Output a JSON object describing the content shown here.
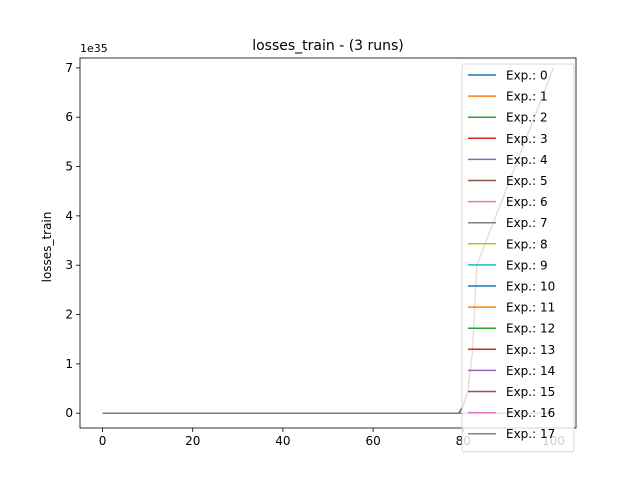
{
  "chart_data": {
    "type": "line",
    "title": "losses_train - (3 runs)",
    "xlabel": "",
    "ylabel": "losses_train",
    "y_offset_label": "1e35",
    "xlim": [
      -5,
      105
    ],
    "ylim": [
      -0.3,
      7.2
    ],
    "x_ticks": [
      0,
      20,
      40,
      60,
      80,
      100
    ],
    "y_ticks": [
      0,
      1,
      2,
      3,
      4,
      5,
      6,
      7
    ],
    "y_unit_note": "values in units of 1e35",
    "grid": false,
    "legend_position": "top-right",
    "series": [
      {
        "name": "Exp.: 0",
        "color": "#1f77b4",
        "x": [
          0,
          100
        ],
        "y": [
          0,
          0
        ]
      },
      {
        "name": "Exp.: 1",
        "color": "#ff7f0e",
        "x": [
          0,
          100
        ],
        "y": [
          0,
          0
        ]
      },
      {
        "name": "Exp.: 2",
        "color": "#2ca02c",
        "x": [
          0,
          100
        ],
        "y": [
          0,
          0
        ]
      },
      {
        "name": "Exp.: 3",
        "color": "#d62728",
        "x": [
          0,
          100
        ],
        "y": [
          0,
          0
        ]
      },
      {
        "name": "Exp.: 4",
        "color": "#9467bd",
        "x": [
          0,
          100
        ],
        "y": [
          0,
          0
        ]
      },
      {
        "name": "Exp.: 5",
        "color": "#8c564b",
        "x": [
          0,
          79,
          80,
          81,
          82,
          83,
          100
        ],
        "y": [
          0,
          0,
          0.15,
          0.45,
          1.2,
          3.0,
          7.0
        ]
      },
      {
        "name": "Exp.: 6",
        "color": "#e377c2",
        "x": [
          0,
          100
        ],
        "y": [
          0,
          0
        ]
      },
      {
        "name": "Exp.: 7",
        "color": "#7f7f7f",
        "x": [
          0,
          100
        ],
        "y": [
          0,
          0
        ]
      },
      {
        "name": "Exp.: 8",
        "color": "#bcbd22",
        "x": [
          0,
          100
        ],
        "y": [
          0,
          0
        ]
      },
      {
        "name": "Exp.: 9",
        "color": "#17becf",
        "x": [
          0,
          100
        ],
        "y": [
          0,
          0
        ]
      },
      {
        "name": "Exp.: 10",
        "color": "#1f77b4",
        "x": [
          0,
          100
        ],
        "y": [
          0,
          0
        ]
      },
      {
        "name": "Exp.: 11",
        "color": "#ff7f0e",
        "x": [
          0,
          100
        ],
        "y": [
          0,
          0
        ]
      },
      {
        "name": "Exp.: 12",
        "color": "#2ca02c",
        "x": [
          0,
          100
        ],
        "y": [
          0,
          0
        ]
      },
      {
        "name": "Exp.: 13",
        "color": "#d62728",
        "x": [
          0,
          100
        ],
        "y": [
          0,
          0
        ]
      },
      {
        "name": "Exp.: 14",
        "color": "#9467bd",
        "x": [
          0,
          100
        ],
        "y": [
          0,
          0
        ]
      },
      {
        "name": "Exp.: 15",
        "color": "#8c564b",
        "x": [
          0,
          100
        ],
        "y": [
          0,
          0
        ]
      },
      {
        "name": "Exp.: 16",
        "color": "#e377c2",
        "x": [
          0,
          100
        ],
        "y": [
          0,
          0
        ]
      },
      {
        "name": "Exp.: 17",
        "color": "#7f7f7f",
        "x": [
          0,
          100
        ],
        "y": [
          0,
          0
        ]
      }
    ]
  }
}
